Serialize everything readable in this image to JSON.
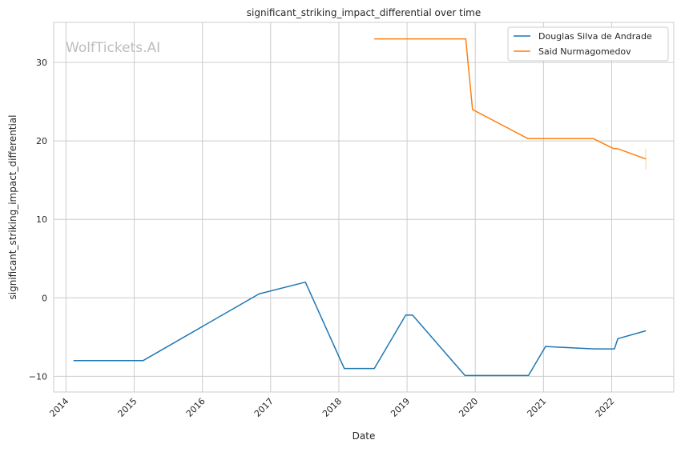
{
  "chart_data": {
    "type": "line",
    "title": "significant_striking_impact_differential over time",
    "xlabel": "Date",
    "ylabel": "significant_striking_impact_differential",
    "xlim": [
      2013.82,
      2022.91
    ],
    "ylim": [
      -12.0,
      35.1
    ],
    "xticks": [
      "2014",
      "2015",
      "2016",
      "2017",
      "2018",
      "2019",
      "2020",
      "2021",
      "2022"
    ],
    "yticks": [
      -10,
      0,
      10,
      20,
      30
    ],
    "grid": true,
    "legend_position": "top-right",
    "watermark": "WolfTickets.AI",
    "series": [
      {
        "name": "Douglas Silva de Andrade",
        "color": "#1f77b4",
        "x": [
          2014.11,
          2015.13,
          2016.83,
          2017.51,
          2018.08,
          2018.52,
          2018.98,
          2019.08,
          2019.85,
          2020.78,
          2021.03,
          2021.74,
          2022.04,
          2022.09,
          2022.5
        ],
        "y": [
          -8.0,
          -8.0,
          0.5,
          2.0,
          -9.0,
          -9.0,
          -2.2,
          -2.2,
          -9.9,
          -9.9,
          -6.2,
          -6.5,
          -6.5,
          -5.2,
          -4.2
        ]
      },
      {
        "name": "Said Nurmagomedov",
        "color": "#ff7f0e",
        "x": [
          2018.52,
          2019.86,
          2019.96,
          2020.77,
          2021.73,
          2022.03,
          2022.09,
          2022.5
        ],
        "y": [
          33.0,
          33.0,
          24.0,
          20.3,
          20.3,
          19.0,
          19.0,
          17.7
        ]
      }
    ]
  }
}
